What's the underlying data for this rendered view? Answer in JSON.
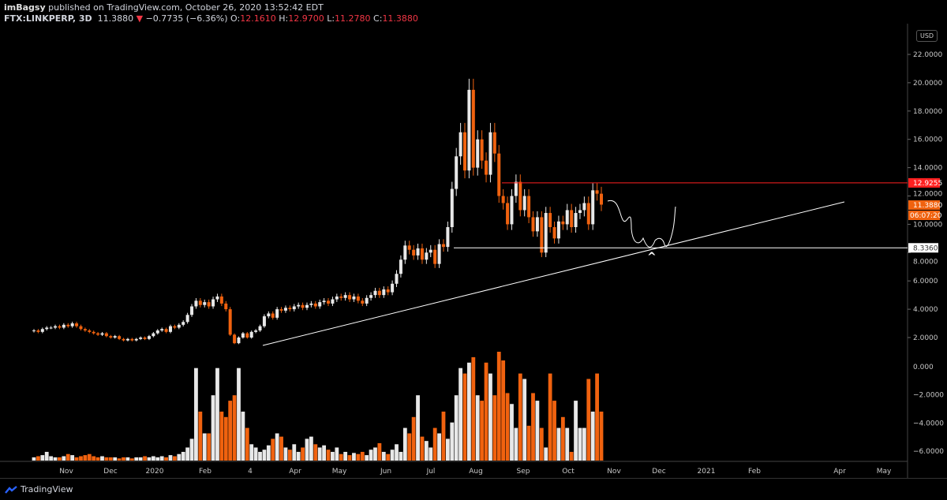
{
  "header": {
    "author": "imBagsy",
    "published": "published on TradingView.com, October 26, 2020 13:52:42 EDT",
    "symbol": "FTX:LINKPERP, 3D",
    "last": "11.3880",
    "change": "−0.7735 (−6.36%)",
    "o_label": "O:",
    "o": "12.1610",
    "h_label": "H:",
    "h": "12.9700",
    "l_label": "L:",
    "l": "11.2780",
    "c_label": "C:",
    "c": "11.3880"
  },
  "currency": "USD",
  "price_axis": [
    "22.0000",
    "20.0000",
    "18.0000",
    "16.0000",
    "14.0000",
    "12.0000",
    "10.0000",
    "8.0000",
    "6.0000",
    "4.0000",
    "2.0000"
  ],
  "volume_axis": [
    "0.000",
    "−2.0000",
    "−4.0000",
    "−6.0000"
  ],
  "price_tags": {
    "resistance": "12.9255",
    "last": "11.3880",
    "countdown": "06:07:20",
    "support": "8.3360"
  },
  "time_axis": [
    "Nov",
    "Dec",
    "2020",
    "Feb",
    "4",
    "Apr",
    "May",
    "Jun",
    "Jul",
    "Aug",
    "Sep",
    "Oct",
    "Nov",
    "Dec",
    "2021",
    "Feb",
    "Apr",
    "May"
  ],
  "colors": {
    "up": "#e8e8e8",
    "down": "#f0620f",
    "resistance": "#ff2020",
    "support": "#ffffff",
    "last": "#f0620f"
  },
  "chart_data": {
    "type": "candlestick",
    "interval": "3D",
    "closes": [
      2.5,
      2.4,
      2.6,
      2.7,
      2.7,
      2.8,
      2.7,
      2.9,
      2.8,
      3.0,
      2.8,
      2.6,
      2.5,
      2.4,
      2.3,
      2.2,
      2.3,
      2.1,
      2.0,
      2.1,
      1.9,
      1.8,
      1.9,
      1.8,
      1.9,
      2.0,
      1.9,
      2.1,
      2.3,
      2.5,
      2.6,
      2.4,
      2.8,
      2.7,
      2.9,
      3.1,
      3.6,
      4.2,
      4.6,
      4.3,
      4.5,
      4.2,
      4.7,
      4.9,
      4.4,
      4.0,
      2.2,
      1.6,
      2.0,
      2.3,
      2.0,
      2.4,
      2.5,
      2.8,
      3.5,
      3.7,
      3.4,
      4.0,
      3.9,
      4.1,
      4.0,
      4.2,
      4.3,
      4.1,
      4.3,
      4.4,
      4.2,
      4.5,
      4.6,
      4.4,
      4.7,
      4.9,
      4.8,
      5.0,
      4.7,
      4.9,
      4.6,
      4.4,
      4.8,
      5.0,
      5.3,
      5.0,
      5.4,
      5.2,
      5.8,
      6.5,
      7.5,
      8.5,
      8.2,
      7.8,
      8.3,
      7.5,
      8.0,
      8.2,
      7.2,
      8.6,
      8.4,
      9.8,
      12.5,
      14.8,
      16.5,
      13.8,
      19.5,
      14.0,
      16.0,
      14.5,
      13.5,
      16.5,
      15.0,
      12.0,
      11.5,
      10.0,
      12.0,
      13.0,
      11.0,
      12.0,
      10.5,
      9.5,
      10.5,
      8.0,
      10.8,
      9.8,
      9.0,
      10.2,
      10.0,
      11.0,
      9.8,
      10.8,
      11.0,
      11.5,
      10.0,
      12.4,
      12.16,
      11.388
    ],
    "volumes": [
      3,
      4,
      5,
      8,
      4,
      3,
      3,
      4,
      6,
      5,
      3,
      4,
      5,
      6,
      4,
      3,
      4,
      3,
      3,
      3,
      2,
      3,
      3,
      2,
      3,
      3,
      4,
      3,
      4,
      3,
      4,
      3,
      5,
      4,
      6,
      8,
      12,
      20,
      85,
      45,
      25,
      25,
      60,
      85,
      45,
      40,
      55,
      60,
      85,
      45,
      30,
      15,
      12,
      8,
      10,
      14,
      20,
      25,
      22,
      12,
      10,
      15,
      8,
      12,
      20,
      22,
      15,
      12,
      14,
      10,
      8,
      12,
      6,
      8,
      5,
      7,
      6,
      8,
      5,
      10,
      12,
      16,
      8,
      6,
      10,
      15,
      8,
      30,
      25,
      40,
      60,
      22,
      18,
      12,
      30,
      25,
      45,
      20,
      35,
      60,
      85,
      80,
      90,
      95,
      60,
      55,
      90,
      80,
      60,
      100,
      92,
      62,
      52,
      30,
      80,
      75,
      32,
      62,
      55,
      30,
      12,
      80,
      55,
      30,
      40,
      30,
      8,
      55,
      30,
      30,
      75,
      45,
      80,
      45
    ],
    "price_range": [
      0,
      24
    ],
    "lines": {
      "resistance": 12.9255,
      "support": 8.336
    }
  }
}
